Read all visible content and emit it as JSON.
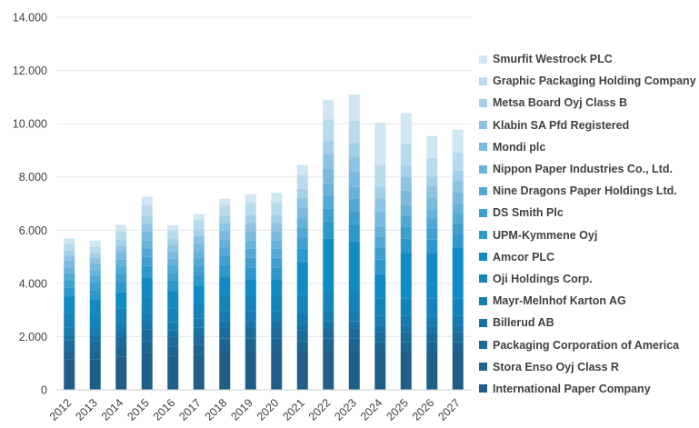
{
  "chart_data": {
    "type": "bar",
    "stacked": true,
    "title": "",
    "xlabel": "",
    "ylabel": "",
    "ylim": [
      0,
      14000
    ],
    "yticks": [
      0,
      2000,
      4000,
      6000,
      8000,
      10000,
      12000,
      14000
    ],
    "ytick_labels": [
      "0",
      "2.000",
      "4.000",
      "6.000",
      "8.000",
      "10.000",
      "12.000",
      "14.000"
    ],
    "grid": "horizontal",
    "legend_position": "right",
    "categories": [
      "2012",
      "2013",
      "2014",
      "2015",
      "2016",
      "2017",
      "2018",
      "2019",
      "2020",
      "2021",
      "2022",
      "2023",
      "2024",
      "2025",
      "2026",
      "2027"
    ],
    "series": [
      {
        "name": "International Paper Company",
        "color": "#1f5e87",
        "values": [
          1150,
          1150,
          1240,
          1420,
          1250,
          1300,
          1500,
          1500,
          1500,
          1400,
          1500,
          1500,
          1400,
          1400,
          1400,
          1400
        ]
      },
      {
        "name": "Stora Enso Oyj Class R",
        "color": "#1d6591",
        "values": [
          350,
          350,
          380,
          420,
          380,
          400,
          420,
          420,
          420,
          420,
          420,
          420,
          400,
          400,
          400,
          400
        ]
      },
      {
        "name": "Packaging Corporation of America",
        "color": "#1b6c9b",
        "values": [
          350,
          330,
          380,
          420,
          380,
          400,
          420,
          420,
          420,
          420,
          400,
          400,
          380,
          380,
          380,
          380
        ]
      },
      {
        "name": "Billerud AB",
        "color": "#1873a5",
        "values": [
          200,
          200,
          220,
          250,
          220,
          230,
          250,
          250,
          250,
          250,
          250,
          250,
          230,
          230,
          230,
          230
        ]
      },
      {
        "name": "Mayr-Melnhof Karton AG",
        "color": "#157bb0",
        "values": [
          300,
          290,
          320,
          360,
          320,
          340,
          360,
          360,
          360,
          380,
          400,
          400,
          380,
          380,
          380,
          380
        ]
      },
      {
        "name": "Oji Holdings Corp.",
        "color": "#1383ba",
        "values": [
          500,
          480,
          520,
          580,
          520,
          560,
          600,
          600,
          600,
          650,
          700,
          700,
          650,
          650,
          650,
          650
        ]
      },
      {
        "name": "Amcor PLC",
        "color": "#108bc4",
        "values": [
          650,
          610,
          620,
          750,
          650,
          680,
          700,
          600,
          600,
          1300,
          2000,
          1900,
          900,
          1700,
          1700,
          1900
        ]
      },
      {
        "name": "UPM-Kymmene Oyj",
        "color": "#2d98cc",
        "values": [
          350,
          340,
          380,
          450,
          380,
          420,
          450,
          450,
          450,
          500,
          650,
          650,
          550,
          550,
          500,
          500
        ]
      },
      {
        "name": "DS Smith Plc",
        "color": "#3fa0d0",
        "values": [
          280,
          280,
          300,
          340,
          300,
          320,
          340,
          360,
          360,
          400,
          500,
          500,
          450,
          450,
          420,
          420
        ]
      },
      {
        "name": "Nine Dragons Paper Holdings Ltd.",
        "color": "#52a9d5",
        "values": [
          250,
          250,
          280,
          330,
          280,
          300,
          320,
          340,
          340,
          380,
          480,
          480,
          420,
          420,
          380,
          380
        ]
      },
      {
        "name": "Nippon Paper Industries Co., Ltd.",
        "color": "#66b2d9",
        "values": [
          220,
          220,
          250,
          290,
          250,
          270,
          290,
          310,
          310,
          350,
          420,
          420,
          380,
          380,
          340,
          340
        ]
      },
      {
        "name": "Mondi plc",
        "color": "#79bade",
        "values": [
          250,
          250,
          280,
          330,
          280,
          300,
          330,
          350,
          350,
          400,
          600,
          600,
          550,
          550,
          450,
          450
        ]
      },
      {
        "name": "Klabin SA Pfd Registered",
        "color": "#8ec4e3",
        "values": [
          200,
          200,
          240,
          290,
          240,
          260,
          290,
          310,
          310,
          350,
          550,
          550,
          500,
          500,
          420,
          420
        ]
      },
      {
        "name": "Metsa Board Oyj Class B",
        "color": "#a4d0e9",
        "values": [
          200,
          200,
          240,
          290,
          240,
          260,
          290,
          310,
          310,
          350,
          500,
          500,
          450,
          450,
          380,
          380
        ]
      },
      {
        "name": "Graphic Packaging Holding Company",
        "color": "#b9dbee",
        "values": [
          250,
          230,
          320,
          420,
          300,
          340,
          400,
          450,
          470,
          530,
          800,
          850,
          820,
          820,
          680,
          680
        ]
      },
      {
        "name": "Smurfit Westrock PLC",
        "color": "#cfe6f3",
        "values": [
          190,
          230,
          230,
          320,
          190,
          220,
          220,
          320,
          350,
          370,
          730,
          980,
          1580,
          1140,
          830,
          860
        ]
      }
    ]
  }
}
